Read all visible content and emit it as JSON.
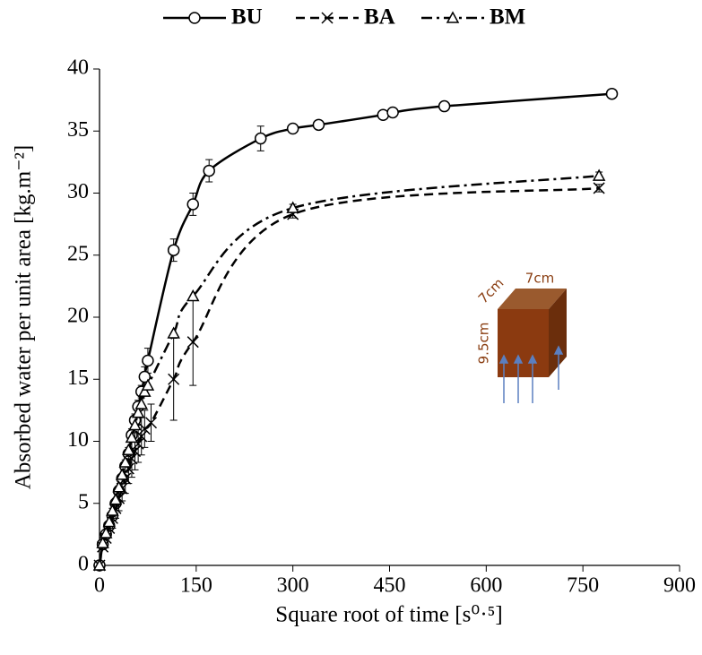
{
  "chart_data": {
    "type": "line",
    "x_label": "Square root of time [s⁰·⁵]",
    "y_label": "Absorbed water per unit area [kg.m⁻²]",
    "xlim": [
      0,
      900
    ],
    "xticks": [
      0,
      150,
      300,
      450,
      600,
      750,
      900
    ],
    "ylim": [
      0,
      40
    ],
    "yticks": [
      0,
      5,
      10,
      15,
      20,
      25,
      30,
      35,
      40
    ],
    "grid": false,
    "legend": "top",
    "annotations": [
      "7cm",
      "7cm",
      "9.5cm"
    ],
    "series": [
      {
        "name": "BU",
        "color": "#000000",
        "marker": "circle",
        "dash": "solid",
        "x": [
          0,
          5,
          10,
          15,
          20,
          25,
          30,
          35,
          40,
          45,
          50,
          55,
          60,
          65,
          70,
          75,
          115,
          145,
          170,
          250,
          300,
          340,
          440,
          455,
          535,
          795
        ],
        "values": [
          0,
          1.7,
          2.5,
          3.2,
          4,
          5,
          6,
          7,
          8,
          9,
          10.5,
          11.7,
          12.8,
          14,
          15.2,
          16.5,
          25.4,
          29.1,
          31.8,
          34.4,
          35.2,
          35.5,
          36.3,
          36.5,
          37,
          38
        ],
        "errors": [
          null,
          null,
          null,
          null,
          null,
          null,
          null,
          null,
          0.5,
          0.5,
          0.5,
          0.5,
          0.5,
          0.5,
          0.8,
          1,
          0.9,
          0.9,
          0.9,
          1,
          null,
          null,
          null,
          null,
          null,
          null
        ]
      },
      {
        "name": "BA",
        "color": "#000000",
        "marker": "x",
        "dash": "dashed",
        "x": [
          0,
          5,
          10,
          15,
          20,
          25,
          30,
          35,
          40,
          45,
          50,
          55,
          60,
          65,
          70,
          80,
          115,
          145,
          300,
          775
        ],
        "values": [
          0,
          1.5,
          2.2,
          3,
          3.8,
          4.6,
          5.4,
          6.2,
          7,
          7.8,
          8.6,
          9.2,
          9.8,
          10.4,
          11,
          11.5,
          15,
          18,
          28.3,
          30.4
        ],
        "errors": [
          null,
          null,
          null,
          null,
          0.8,
          0.8,
          1,
          1,
          1.2,
          1.2,
          1.5,
          1.5,
          1.5,
          1.5,
          1.5,
          1.5,
          3.3,
          3.5,
          0.3,
          0.3
        ]
      },
      {
        "name": "BM",
        "color": "#000000",
        "marker": "triangle",
        "dash": "dashdot",
        "x": [
          0,
          5,
          10,
          15,
          20,
          25,
          30,
          35,
          40,
          45,
          50,
          55,
          60,
          65,
          70,
          75,
          115,
          145,
          300,
          775
        ],
        "values": [
          0,
          1.8,
          2.6,
          3.5,
          4.4,
          5.3,
          6.3,
          7.3,
          8.3,
          9.3,
          10.3,
          11.3,
          12.3,
          13,
          14,
          14.5,
          18.7,
          21.7,
          28.8,
          31.4
        ],
        "errors": [
          null,
          null,
          null,
          null,
          null,
          null,
          null,
          null,
          null,
          null,
          null,
          null,
          null,
          null,
          null,
          null,
          null,
          null,
          0.3,
          0.3
        ]
      }
    ]
  }
}
